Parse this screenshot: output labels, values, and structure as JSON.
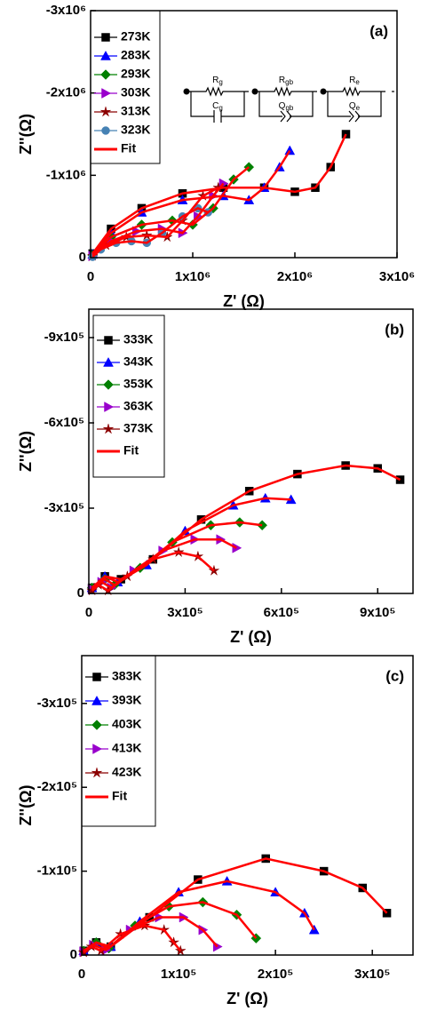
{
  "chart_data": [
    {
      "type": "scatter",
      "panel_label": "(a)",
      "xlabel": "Z' (Ω)",
      "ylabel": "Z''(Ω)",
      "xlim": [
        0,
        3000000
      ],
      "ylim": [
        0,
        -3000000
      ],
      "xticks": [
        0,
        {
          "value": 1000000,
          "label": "1x10⁶"
        },
        {
          "value": 2000000,
          "label": "2x10⁶"
        },
        {
          "value": 3000000,
          "label": "3x10⁶"
        }
      ],
      "yticks": [
        0,
        {
          "value": -1000000,
          "label": "-1x10⁶"
        },
        {
          "value": -2000000,
          "label": "-2x10⁶"
        },
        {
          "value": -3000000,
          "label": "-3x10⁶"
        }
      ],
      "legend": "upper left",
      "circuit": [
        {
          "symbol": "R",
          "sub": "g"
        },
        {
          "symbol": "C",
          "sub": "g"
        },
        {
          "symbol": "R",
          "sub": "gb"
        },
        {
          "symbol": "Q",
          "sub": "gb"
        },
        {
          "symbol": "R",
          "sub": "e"
        },
        {
          "symbol": "Q",
          "sub": "e"
        }
      ],
      "series": [
        {
          "name": "273K",
          "color": "#000000",
          "marker": "square",
          "x": [
            20000,
            200000,
            500000,
            900000,
            1300000,
            1700000,
            2000000,
            2200000,
            2350000,
            2500000
          ],
          "values": [
            -50000,
            -350000,
            -600000,
            -780000,
            -850000,
            -850000,
            -800000,
            -850000,
            -1100000,
            -1500000
          ]
        },
        {
          "name": "283K",
          "color": "#0000ff",
          "marker": "triangle",
          "x": [
            20000,
            200000,
            500000,
            900000,
            1300000,
            1550000,
            1700000,
            1850000,
            1950000
          ],
          "values": [
            -40000,
            -300000,
            -550000,
            -700000,
            -750000,
            -700000,
            -850000,
            -1100000,
            -1300000
          ]
        },
        {
          "name": "293K",
          "color": "#008000",
          "marker": "diamond",
          "x": [
            20000,
            200000,
            500000,
            800000,
            1000000,
            1200000,
            1400000,
            1550000
          ],
          "values": [
            -30000,
            -250000,
            -400000,
            -450000,
            -400000,
            -600000,
            -950000,
            -1100000
          ]
        },
        {
          "name": "303K",
          "color": "#9900cc",
          "marker": "triangle-right",
          "x": [
            20000,
            200000,
            450000,
            700000,
            900000,
            1050000,
            1200000,
            1300000
          ],
          "values": [
            -20000,
            -200000,
            -320000,
            -350000,
            -300000,
            -500000,
            -750000,
            -900000
          ]
        },
        {
          "name": "313K",
          "color": "#8b0000",
          "marker": "star",
          "x": [
            20000,
            150000,
            350000,
            550000,
            750000,
            900000,
            1100000,
            1250000
          ],
          "values": [
            -20000,
            -150000,
            -250000,
            -270000,
            -250000,
            -450000,
            -750000,
            -850000
          ]
        },
        {
          "name": "323K",
          "color": "#4682b4",
          "marker": "circle",
          "x": [
            20000,
            100000,
            250000,
            400000,
            550000,
            700000,
            900000,
            1050000,
            1150000
          ],
          "values": [
            -10000,
            -100000,
            -180000,
            -200000,
            -180000,
            -300000,
            -500000,
            -600000,
            -550000
          ]
        },
        {
          "name": "Fit",
          "color": "#ff0000",
          "x": [
            20000,
            200000,
            500000,
            900000,
            1300000,
            1700000,
            2000000,
            2200000,
            2350000,
            2500000,
            null,
            20000,
            200000,
            500000,
            900000,
            1300000,
            1550000,
            1700000,
            1850000,
            1950000,
            null,
            20000,
            200000,
            500000,
            800000,
            1000000,
            1200000,
            1400000,
            1550000,
            null,
            20000,
            200000,
            450000,
            700000,
            900000,
            1050000,
            1200000,
            1300000,
            null,
            20000,
            150000,
            350000,
            550000,
            750000,
            900000,
            1100000,
            1250000,
            null,
            20000,
            100000,
            250000,
            400000,
            550000,
            700000,
            900000,
            1050000,
            1150000
          ],
          "values": [
            -50000,
            -350000,
            -600000,
            -780000,
            -850000,
            -850000,
            -800000,
            -850000,
            -1100000,
            -1500000,
            null,
            -40000,
            -300000,
            -550000,
            -700000,
            -750000,
            -700000,
            -850000,
            -1100000,
            -1300000,
            null,
            -30000,
            -250000,
            -400000,
            -450000,
            -400000,
            -600000,
            -950000,
            -1100000,
            null,
            -20000,
            -200000,
            -320000,
            -350000,
            -300000,
            -500000,
            -750000,
            -900000,
            null,
            -20000,
            -150000,
            -250000,
            -270000,
            -250000,
            -450000,
            -750000,
            -850000,
            null,
            -10000,
            -100000,
            -180000,
            -200000,
            -180000,
            -300000,
            -500000,
            -600000,
            -550000
          ]
        }
      ]
    },
    {
      "type": "scatter",
      "panel_label": "(b)",
      "xlabel": "Z' (Ω)",
      "ylabel": "Z''(Ω)",
      "xlim": [
        0,
        1010000
      ],
      "ylim": [
        0,
        -1000000
      ],
      "xticks": [
        0,
        {
          "value": 300000,
          "label": "3x10⁵"
        },
        {
          "value": 600000,
          "label": "6x10⁵"
        },
        {
          "value": 900000,
          "label": "9x10⁵"
        }
      ],
      "yticks": [
        {
          "value": -300000,
          "label": "-3x10⁵"
        },
        {
          "value": -600000,
          "label": "-6x10⁵"
        },
        {
          "value": -900000,
          "label": "-9x10⁵"
        },
        0
      ],
      "legend": "upper left",
      "series": [
        {
          "name": "333K",
          "color": "#000000",
          "marker": "square",
          "x": [
            10000,
            50000,
            100000,
            200000,
            350000,
            500000,
            650000,
            800000,
            900000,
            970000
          ],
          "values": [
            -20000,
            -60000,
            -50000,
            -120000,
            -260000,
            -360000,
            -420000,
            -450000,
            -440000,
            -400000
          ]
        },
        {
          "name": "343K",
          "color": "#0000ff",
          "marker": "triangle",
          "x": [
            10000,
            50000,
            90000,
            180000,
            300000,
            450000,
            550000,
            630000
          ],
          "values": [
            -20000,
            -60000,
            -40000,
            -100000,
            -220000,
            -310000,
            -335000,
            -330000
          ]
        },
        {
          "name": "353K",
          "color": "#008000",
          "marker": "diamond",
          "x": [
            10000,
            50000,
            80000,
            160000,
            260000,
            380000,
            470000,
            540000
          ],
          "values": [
            -20000,
            -50000,
            -30000,
            -90000,
            -180000,
            -240000,
            -250000,
            -240000
          ]
        },
        {
          "name": "363K",
          "color": "#9900cc",
          "marker": "triangle-right",
          "x": [
            10000,
            40000,
            70000,
            140000,
            230000,
            330000,
            410000,
            460000
          ],
          "values": [
            -15000,
            -40000,
            -20000,
            -80000,
            -150000,
            -190000,
            -190000,
            -160000
          ]
        },
        {
          "name": "373K",
          "color": "#8b0000",
          "marker": "star",
          "x": [
            10000,
            30000,
            60000,
            120000,
            200000,
            280000,
            340000,
            390000
          ],
          "values": [
            -10000,
            -30000,
            -10000,
            -60000,
            -120000,
            -145000,
            -130000,
            -80000
          ]
        },
        {
          "name": "Fit",
          "color": "#ff0000",
          "x": [
            10000,
            50000,
            100000,
            200000,
            350000,
            500000,
            650000,
            800000,
            900000,
            970000,
            null,
            10000,
            50000,
            90000,
            180000,
            300000,
            450000,
            550000,
            630000,
            null,
            10000,
            50000,
            80000,
            160000,
            260000,
            380000,
            470000,
            540000,
            null,
            10000,
            40000,
            70000,
            140000,
            230000,
            330000,
            410000,
            460000,
            null,
            10000,
            30000,
            60000,
            120000,
            200000,
            280000,
            340000,
            390000
          ],
          "values": [
            -20000,
            -60000,
            -50000,
            -120000,
            -260000,
            -360000,
            -420000,
            -450000,
            -440000,
            -400000,
            null,
            -20000,
            -60000,
            -40000,
            -100000,
            -220000,
            -310000,
            -335000,
            -330000,
            null,
            -20000,
            -50000,
            -30000,
            -90000,
            -180000,
            -240000,
            -250000,
            -240000,
            null,
            -15000,
            -40000,
            -20000,
            -80000,
            -150000,
            -190000,
            -190000,
            -160000,
            null,
            -10000,
            -30000,
            -10000,
            -60000,
            -120000,
            -145000,
            -130000,
            -80000
          ]
        }
      ]
    },
    {
      "type": "scatter",
      "panel_label": "(c)",
      "xlabel": "Z' (Ω)",
      "ylabel": "Z''(Ω)",
      "xlim": [
        0,
        342000
      ],
      "ylim": [
        0,
        -357000
      ],
      "xticks": [
        0,
        {
          "value": 100000,
          "label": "1x10⁵"
        },
        {
          "value": 200000,
          "label": "2x10⁵"
        },
        {
          "value": 300000,
          "label": "3x10⁵"
        }
      ],
      "yticks": [
        0,
        {
          "value": -100000,
          "label": "-1x10⁵"
        },
        {
          "value": -200000,
          "label": "-2x10⁵"
        },
        {
          "value": -300000,
          "label": "-3x10⁵"
        }
      ],
      "legend": "upper left",
      "series": [
        {
          "name": "383K",
          "color": "#000000",
          "marker": "square",
          "x": [
            2000,
            15000,
            30000,
            70000,
            120000,
            190000,
            250000,
            290000,
            315000
          ],
          "values": [
            -5000,
            -15000,
            -10000,
            -45000,
            -90000,
            -115000,
            -100000,
            -80000,
            -50000
          ]
        },
        {
          "name": "393K",
          "color": "#0000ff",
          "marker": "triangle",
          "x": [
            2000,
            15000,
            30000,
            60000,
            100000,
            150000,
            200000,
            230000,
            240000
          ],
          "values": [
            -5000,
            -15000,
            -10000,
            -40000,
            -75000,
            -88000,
            -75000,
            -50000,
            -30000
          ]
        },
        {
          "name": "403K",
          "color": "#008000",
          "marker": "diamond",
          "x": [
            2000,
            15000,
            28000,
            55000,
            90000,
            125000,
            160000,
            180000
          ],
          "values": [
            -5000,
            -15000,
            -8000,
            -35000,
            -58000,
            -63000,
            -48000,
            -20000
          ]
        },
        {
          "name": "413K",
          "color": "#9900cc",
          "marker": "triangle-right",
          "x": [
            2000,
            12000,
            25000,
            50000,
            80000,
            105000,
            125000,
            140000
          ],
          "values": [
            -4000,
            -12000,
            -6000,
            -30000,
            -45000,
            -45000,
            -30000,
            -10000
          ]
        },
        {
          "name": "423K",
          "color": "#8b0000",
          "marker": "star",
          "x": [
            2000,
            10000,
            20000,
            40000,
            65000,
            85000,
            95000,
            102000
          ],
          "values": [
            -3000,
            -10000,
            -5000,
            -25000,
            -35000,
            -30000,
            -15000,
            -5000
          ]
        },
        {
          "name": "Fit",
          "color": "#ff0000",
          "x": [
            2000,
            15000,
            30000,
            70000,
            120000,
            190000,
            250000,
            290000,
            315000,
            null,
            2000,
            15000,
            30000,
            60000,
            100000,
            150000,
            200000,
            230000,
            240000,
            null,
            2000,
            15000,
            28000,
            55000,
            90000,
            125000,
            160000,
            180000,
            null,
            2000,
            12000,
            25000,
            50000,
            80000,
            105000,
            125000,
            140000,
            null,
            2000,
            10000,
            20000,
            40000,
            65000,
            85000,
            95000,
            102000
          ],
          "values": [
            -5000,
            -15000,
            -10000,
            -45000,
            -90000,
            -115000,
            -100000,
            -80000,
            -50000,
            null,
            -5000,
            -15000,
            -10000,
            -40000,
            -75000,
            -88000,
            -75000,
            -50000,
            -30000,
            null,
            -5000,
            -15000,
            -8000,
            -35000,
            -58000,
            -63000,
            -48000,
            -20000,
            null,
            -4000,
            -12000,
            -6000,
            -30000,
            -45000,
            -45000,
            -30000,
            -10000,
            null,
            -3000,
            -10000,
            -5000,
            -25000,
            -35000,
            -30000,
            -15000,
            -5000
          ]
        }
      ]
    }
  ]
}
